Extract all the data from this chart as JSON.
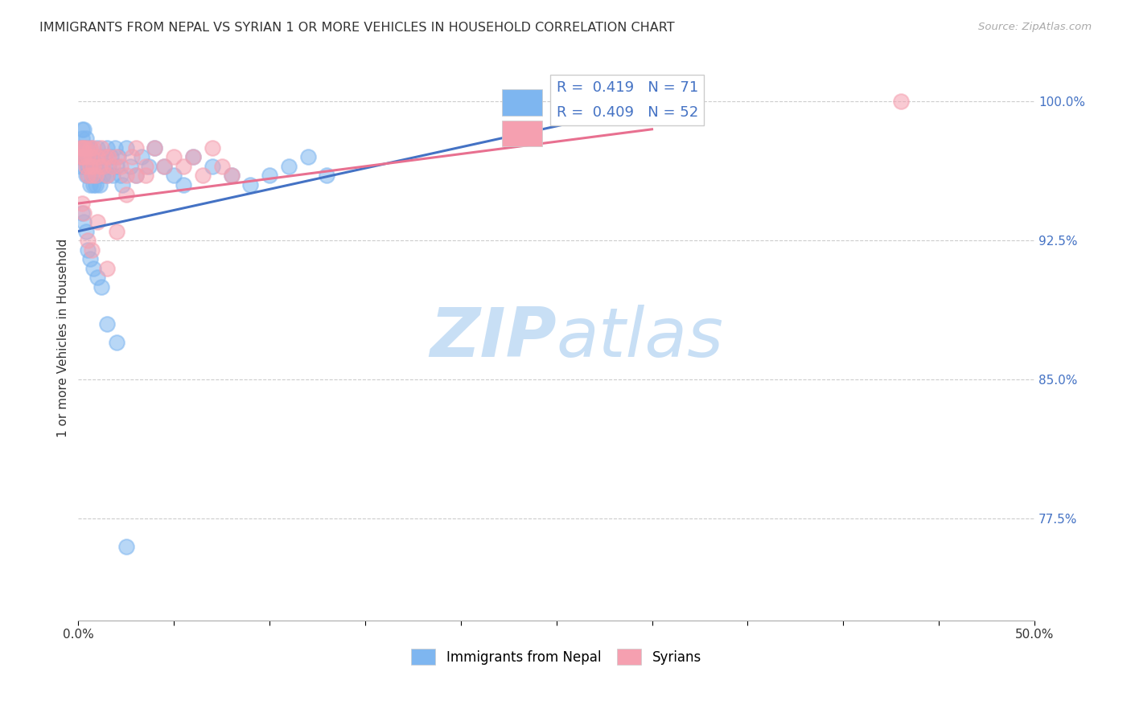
{
  "title": "IMMIGRANTS FROM NEPAL VS SYRIAN 1 OR MORE VEHICLES IN HOUSEHOLD CORRELATION CHART",
  "source": "Source: ZipAtlas.com",
  "ylabel": "1 or more Vehicles in Household",
  "xlim": [
    0.0,
    0.5
  ],
  "ylim": [
    0.72,
    1.025
  ],
  "yticks": [
    0.775,
    0.85,
    0.925,
    1.0
  ],
  "ytick_labels": [
    "77.5%",
    "85.0%",
    "92.5%",
    "100.0%"
  ],
  "xticks": [
    0.0,
    0.05,
    0.1,
    0.15,
    0.2,
    0.25,
    0.3,
    0.35,
    0.4,
    0.45,
    0.5
  ],
  "xtick_labels": [
    "0.0%",
    "",
    "",
    "",
    "",
    "",
    "",
    "",
    "",
    "",
    "50.0%"
  ],
  "nepal_color": "#7EB6F0",
  "syrian_color": "#F5A0B0",
  "nepal_R": 0.419,
  "nepal_N": 71,
  "syrian_R": 0.409,
  "syrian_N": 52,
  "nepal_line_color": "#4472C4",
  "syrian_line_color": "#E87090",
  "nepal_line_x": [
    0.0,
    0.3
  ],
  "nepal_line_y": [
    0.93,
    0.998
  ],
  "syrian_line_x": [
    0.0,
    0.3
  ],
  "syrian_line_y": [
    0.945,
    0.985
  ],
  "watermark_zip": "ZIP",
  "watermark_atlas": "atlas",
  "watermark_color": "#C8DFF5",
  "legend_label_nepal": "Immigrants from Nepal",
  "legend_label_syrian": "Syrians",
  "background_color": "#FFFFFF",
  "grid_color": "#CCCCCC",
  "nepal_x_data": [
    0.001,
    0.001,
    0.001,
    0.002,
    0.002,
    0.002,
    0.002,
    0.003,
    0.003,
    0.003,
    0.003,
    0.004,
    0.004,
    0.004,
    0.005,
    0.005,
    0.005,
    0.006,
    0.006,
    0.006,
    0.007,
    0.007,
    0.008,
    0.008,
    0.009,
    0.009,
    0.01,
    0.01,
    0.011,
    0.011,
    0.012,
    0.013,
    0.014,
    0.015,
    0.015,
    0.016,
    0.017,
    0.018,
    0.019,
    0.02,
    0.021,
    0.022,
    0.023,
    0.025,
    0.027,
    0.03,
    0.033,
    0.037,
    0.04,
    0.045,
    0.05,
    0.055,
    0.06,
    0.07,
    0.08,
    0.09,
    0.1,
    0.11,
    0.12,
    0.13,
    0.002,
    0.003,
    0.004,
    0.005,
    0.006,
    0.008,
    0.01,
    0.012,
    0.015,
    0.02,
    0.025
  ],
  "nepal_y_data": [
    0.975,
    0.97,
    0.965,
    0.985,
    0.98,
    0.975,
    0.97,
    0.985,
    0.975,
    0.97,
    0.965,
    0.98,
    0.97,
    0.96,
    0.975,
    0.965,
    0.96,
    0.975,
    0.965,
    0.955,
    0.97,
    0.96,
    0.968,
    0.955,
    0.965,
    0.955,
    0.975,
    0.96,
    0.97,
    0.955,
    0.965,
    0.96,
    0.97,
    0.975,
    0.96,
    0.965,
    0.97,
    0.96,
    0.975,
    0.965,
    0.97,
    0.96,
    0.955,
    0.975,
    0.965,
    0.96,
    0.97,
    0.965,
    0.975,
    0.965,
    0.96,
    0.955,
    0.97,
    0.965,
    0.96,
    0.955,
    0.96,
    0.965,
    0.97,
    0.96,
    0.94,
    0.935,
    0.93,
    0.92,
    0.915,
    0.91,
    0.905,
    0.9,
    0.88,
    0.87,
    0.76
  ],
  "syrian_x_data": [
    0.001,
    0.001,
    0.002,
    0.002,
    0.003,
    0.003,
    0.004,
    0.004,
    0.005,
    0.005,
    0.006,
    0.006,
    0.007,
    0.007,
    0.008,
    0.008,
    0.009,
    0.01,
    0.011,
    0.012,
    0.013,
    0.014,
    0.015,
    0.016,
    0.018,
    0.02,
    0.022,
    0.025,
    0.028,
    0.03,
    0.035,
    0.04,
    0.045,
    0.05,
    0.055,
    0.06,
    0.065,
    0.07,
    0.075,
    0.08,
    0.002,
    0.003,
    0.005,
    0.007,
    0.01,
    0.015,
    0.02,
    0.025,
    0.03,
    0.035,
    0.265,
    0.43
  ],
  "syrian_y_data": [
    0.975,
    0.97,
    0.975,
    0.97,
    0.975,
    0.97,
    0.975,
    0.965,
    0.97,
    0.96,
    0.975,
    0.965,
    0.97,
    0.96,
    0.975,
    0.965,
    0.96,
    0.97,
    0.965,
    0.975,
    0.965,
    0.97,
    0.96,
    0.97,
    0.965,
    0.97,
    0.965,
    0.96,
    0.97,
    0.975,
    0.965,
    0.975,
    0.965,
    0.97,
    0.965,
    0.97,
    0.96,
    0.975,
    0.965,
    0.96,
    0.945,
    0.94,
    0.925,
    0.92,
    0.935,
    0.91,
    0.93,
    0.95,
    0.96,
    0.96,
    1.0,
    1.0
  ]
}
